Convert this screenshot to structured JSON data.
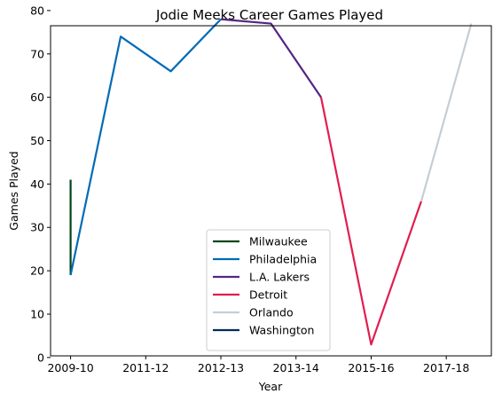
{
  "chart_data": {
    "type": "line",
    "title": "Jodie Meeks Career Games Played",
    "xlabel": "Year",
    "ylabel": "Games Played",
    "x_tick_labels": [
      "2009-10",
      "2011-12",
      "2012-13",
      "2013-14",
      "2015-16",
      "2017-18"
    ],
    "x_tick_positions": [
      0,
      1.5,
      3,
      4.5,
      6,
      7.5
    ],
    "ylim": [
      0,
      80
    ],
    "y_ticks": [
      0,
      10,
      20,
      30,
      40,
      50,
      60,
      70,
      80
    ],
    "xlim": [
      -0.4,
      8.4
    ],
    "grid": false,
    "legend_position": "lower-center",
    "series": [
      {
        "name": "Milwaukee",
        "color": "#00471B",
        "x": [
          0,
          0
        ],
        "y": [
          41,
          19
        ]
      },
      {
        "name": "Philadelphia",
        "color": "#006BB6",
        "x": [
          0,
          1,
          2,
          3
        ],
        "y": [
          19,
          74,
          66,
          78
        ]
      },
      {
        "name": "L.A. Lakers",
        "color": "#552583",
        "x": [
          3,
          4,
          5
        ],
        "y": [
          78,
          77,
          60
        ]
      },
      {
        "name": "Detroit",
        "color": "#E01E4F",
        "x": [
          5,
          6,
          7
        ],
        "y": [
          60,
          3,
          36
        ]
      },
      {
        "name": "Orlando",
        "color": "#C4CED4",
        "x": [
          7,
          8
        ],
        "y": [
          36,
          77
        ]
      },
      {
        "name": "Washington",
        "color": "#002B5C",
        "x": [],
        "y": []
      }
    ]
  }
}
